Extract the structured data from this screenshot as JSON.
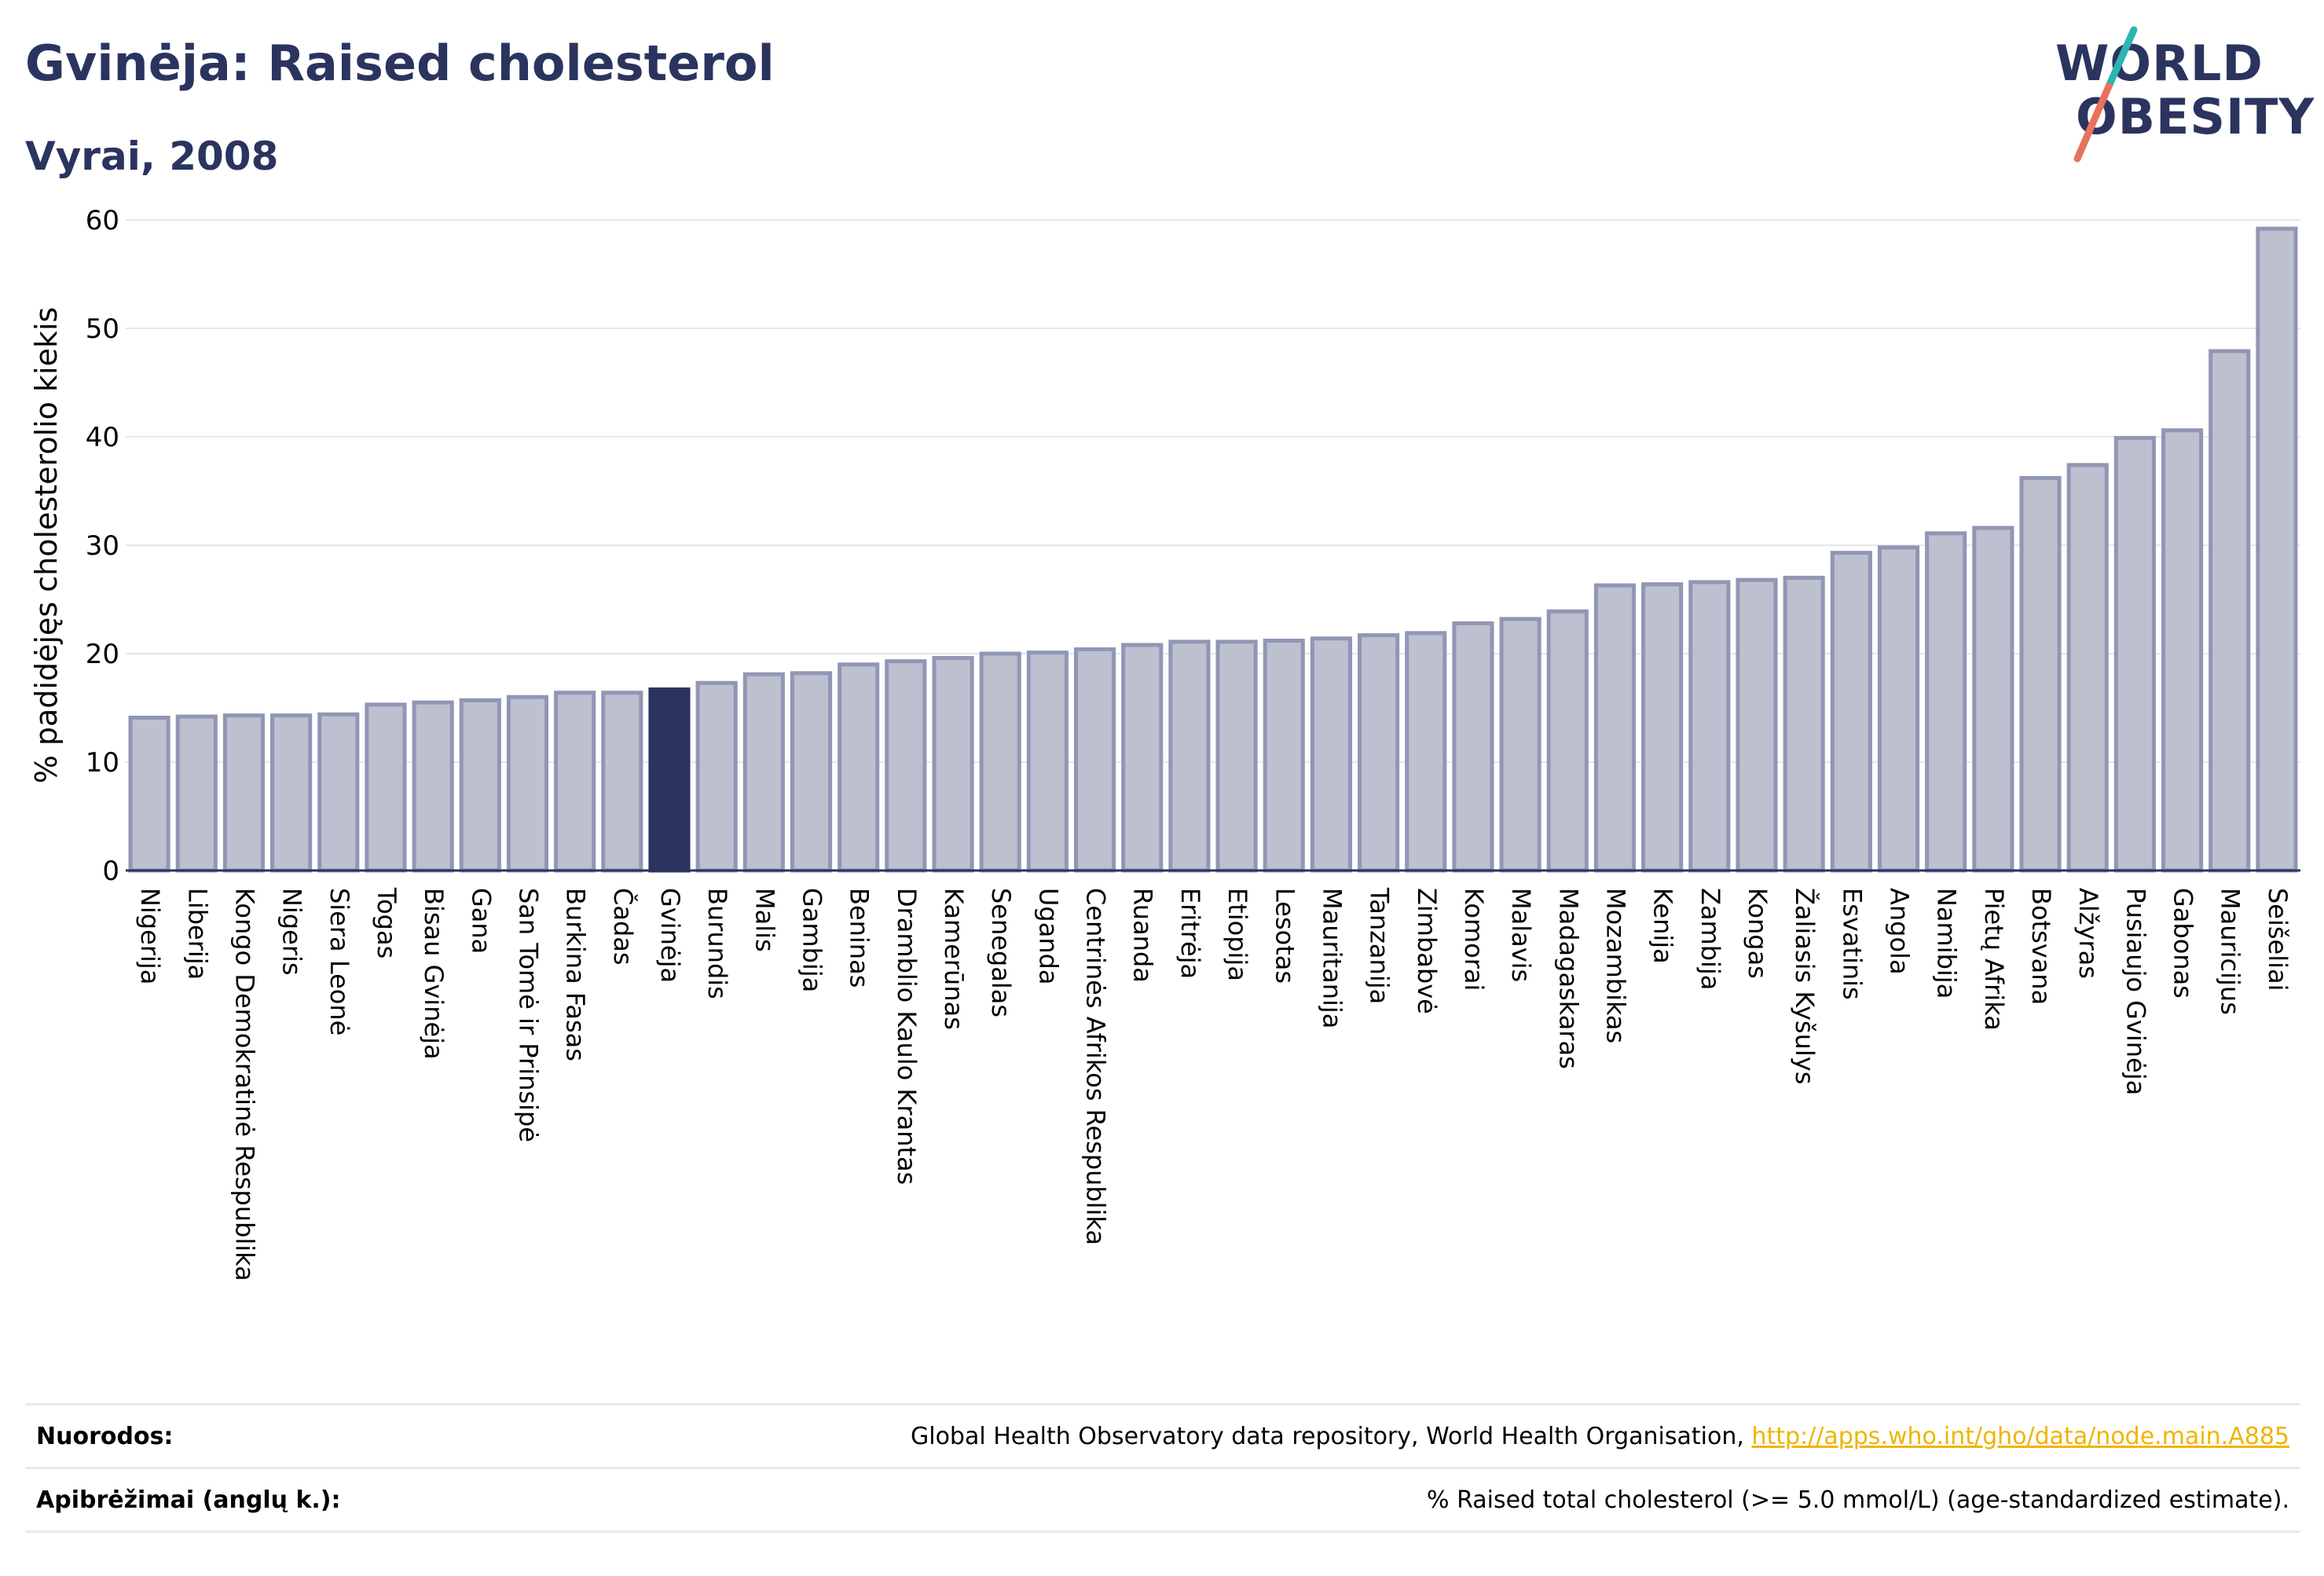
{
  "title": "Gvinėja: Raised cholesterol",
  "subtitle": "Vyrai, 2008",
  "logo": {
    "line1": "WORLD",
    "line2": "OBESITY",
    "accent_colors": [
      "#2bb5b0",
      "#e8735c"
    ]
  },
  "colors": {
    "bar": "#bcc0cf",
    "bar_border": "#9096b4",
    "highlight": "#2b345f",
    "grid": "#e6e6ee",
    "axis": "#2b345f"
  },
  "footer": {
    "sources_label": "Nuorodos:",
    "sources_text": "Global Health Observatory data repository, World Health Organisation,",
    "sources_link": "http://apps.who.int/gho/data/node.main.A885",
    "definitions_label": "Apibrėžimai (anglų k.):",
    "definitions_text": "% Raised total cholesterol (>= 5.0 mmol/L) (age-standardized estimate)."
  },
  "chart_data": {
    "type": "bar",
    "ylabel": "% padidėjęs cholesterolio kiekis",
    "xlabel": "",
    "ylim": [
      0,
      60
    ],
    "yticks": [
      0,
      10,
      20,
      30,
      40,
      50,
      60
    ],
    "grid": true,
    "highlight": "Gvinėja",
    "categories": [
      "Nigerija",
      "Liberija",
      "Kongo Demokratinė Respublika",
      "Nigeris",
      "Siera Leonė",
      "Togas",
      "Bisau Gvinėja",
      "Gana",
      "San Tomė ir Prinsipė",
      "Burkina Fasas",
      "Čadas",
      "Gvinėja",
      "Burundis",
      "Malis",
      "Gambija",
      "Beninas",
      "Dramblio Kaulo Krantas",
      "Kamerūnas",
      "Senegalas",
      "Uganda",
      "Centrinės Afrikos Respublika",
      "Ruanda",
      "Eritrėja",
      "Etiopija",
      "Lesotas",
      "Mauritanija",
      "Tanzanija",
      "Zimbabvė",
      "Komorai",
      "Malavis",
      "Madagaskaras",
      "Mozambikas",
      "Kenija",
      "Zambija",
      "Kongas",
      "Žaliasis Kyšulys",
      "Esvatinis",
      "Angola",
      "Namibija",
      "Pietų Afrika",
      "Botsvana",
      "Alžyras",
      "Pusiaujo Gvinėja",
      "Gabonas",
      "Mauricijus",
      "Seišeliai"
    ],
    "values": [
      14.1,
      14.2,
      14.3,
      14.3,
      14.4,
      15.3,
      15.5,
      15.7,
      16.0,
      16.4,
      16.4,
      16.7,
      17.3,
      18.1,
      18.2,
      19.0,
      19.3,
      19.6,
      20.0,
      20.1,
      20.4,
      20.8,
      21.1,
      21.1,
      21.2,
      21.4,
      21.7,
      21.9,
      22.8,
      23.2,
      23.9,
      26.3,
      26.4,
      26.6,
      26.8,
      27.0,
      29.3,
      29.8,
      31.1,
      31.6,
      36.2,
      37.4,
      39.9,
      40.6,
      47.9,
      59.2
    ]
  }
}
